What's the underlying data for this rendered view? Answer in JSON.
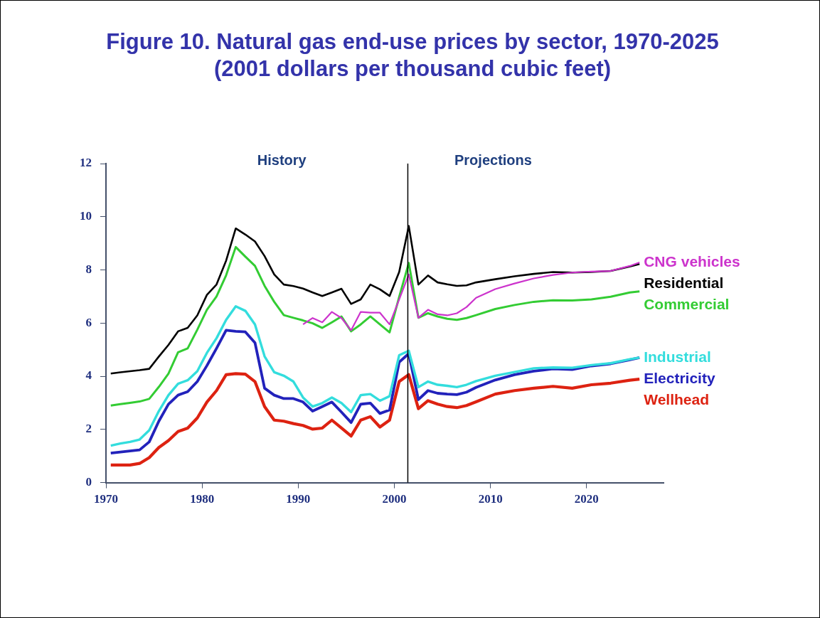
{
  "chart_data": {
    "type": "line",
    "title": "Figure 10. Natural gas end-use prices by sector, 1970-2025 (2001 dollars per thousand cubic feet)",
    "xlim": [
      1970,
      2028
    ],
    "xticks": [
      1970,
      1980,
      1990,
      2000,
      2010,
      2020
    ],
    "ylim": [
      0,
      12
    ],
    "yticks": [
      0,
      2,
      4,
      6,
      8,
      10,
      12
    ],
    "grid": false,
    "legend": false,
    "marker": "none",
    "line_style": "solid",
    "ref_lines": [
      {
        "axis": "x",
        "value": 2001.4,
        "color": "#000000"
      }
    ],
    "annotations": [
      "History",
      "Projections"
    ],
    "series": [
      {
        "name": "CNG vehicles",
        "color": "#cc33cc",
        "x": [
          1990.5,
          1991.5,
          1992.5,
          1993.5,
          1994.5,
          1995.5,
          1996.5,
          1997.5,
          1998.5,
          1999.5,
          2000.5,
          2001.5,
          2002.5,
          2003.5,
          2004.5,
          2005.5,
          2006.5,
          2007.5,
          2008.5,
          2010.5,
          2012.5,
          2014.5,
          2016.5,
          2018.5,
          2020.5,
          2022.5,
          2024.5,
          2025.5
        ],
        "values": [
          5.95,
          6.19,
          6.03,
          6.42,
          6.19,
          5.73,
          6.42,
          6.39,
          6.39,
          5.95,
          6.89,
          7.83,
          6.2,
          6.5,
          6.33,
          6.29,
          6.37,
          6.6,
          6.95,
          7.28,
          7.49,
          7.68,
          7.81,
          7.9,
          7.94,
          7.96,
          8.15,
          8.28
        ]
      },
      {
        "name": "Residential",
        "color": "#000000",
        "x": [
          1970.5,
          1971.5,
          1972.5,
          1973.5,
          1974.5,
          1975.5,
          1976.5,
          1977.5,
          1978.5,
          1979.5,
          1980.5,
          1981.5,
          1982.5,
          1983.5,
          1984.5,
          1985.5,
          1986.5,
          1987.5,
          1988.5,
          1989.5,
          1990.5,
          1991.5,
          1992.5,
          1993.5,
          1994.5,
          1995.5,
          1996.5,
          1997.5,
          1998.5,
          1999.5,
          2000.5,
          2001.5,
          2002.5,
          2003.5,
          2004.5,
          2005.5,
          2006.5,
          2007.5,
          2008.5,
          2010.5,
          2012.5,
          2014.5,
          2016.5,
          2018.5,
          2020.5,
          2022.5,
          2024.5,
          2025.5
        ],
        "values": [
          4.1,
          4.15,
          4.19,
          4.23,
          4.28,
          4.74,
          5.18,
          5.69,
          5.82,
          6.29,
          7.06,
          7.45,
          8.35,
          9.56,
          9.33,
          9.07,
          8.52,
          7.83,
          7.45,
          7.39,
          7.3,
          7.15,
          7.02,
          7.15,
          7.29,
          6.72,
          6.89,
          7.45,
          7.27,
          7.02,
          7.92,
          9.65,
          7.45,
          7.79,
          7.53,
          7.46,
          7.4,
          7.42,
          7.53,
          7.65,
          7.76,
          7.85,
          7.92,
          7.9,
          7.92,
          7.96,
          8.13,
          8.22
        ]
      },
      {
        "name": "Commercial",
        "color": "#33cc33",
        "x": [
          1970.5,
          1971.5,
          1972.5,
          1973.5,
          1974.5,
          1975.5,
          1976.5,
          1977.5,
          1978.5,
          1979.5,
          1980.5,
          1981.5,
          1982.5,
          1983.5,
          1984.5,
          1985.5,
          1986.5,
          1987.5,
          1988.5,
          1989.5,
          1990.5,
          1991.5,
          1992.5,
          1993.5,
          1994.5,
          1995.5,
          1996.5,
          1997.5,
          1998.5,
          1999.5,
          2000.5,
          2001.5,
          2002.5,
          2003.5,
          2004.5,
          2005.5,
          2006.5,
          2007.5,
          2008.5,
          2010.5,
          2012.5,
          2014.5,
          2016.5,
          2018.5,
          2020.5,
          2022.5,
          2024.5,
          2025.5
        ],
        "values": [
          2.9,
          2.95,
          3,
          3.05,
          3.15,
          3.6,
          4.1,
          4.9,
          5.05,
          5.75,
          6.5,
          7,
          7.8,
          8.86,
          8.5,
          8.15,
          7.4,
          6.8,
          6.3,
          6.2,
          6.1,
          5.99,
          5.82,
          6.03,
          6.25,
          5.69,
          5.95,
          6.25,
          5.95,
          5.65,
          6.98,
          8.26,
          6.2,
          6.37,
          6.25,
          6.16,
          6.12,
          6.19,
          6.3,
          6.53,
          6.68,
          6.8,
          6.86,
          6.85,
          6.89,
          6.99,
          7.15,
          7.19
        ]
      },
      {
        "name": "Industrial",
        "color": "#33dddd",
        "x": [
          1970.5,
          1971.5,
          1972.5,
          1973.5,
          1974.5,
          1975.5,
          1976.5,
          1977.5,
          1978.5,
          1979.5,
          1980.5,
          1981.5,
          1982.5,
          1983.5,
          1984.5,
          1985.5,
          1986.5,
          1987.5,
          1988.5,
          1989.5,
          1990.5,
          1991.5,
          1992.5,
          1993.5,
          1994.5,
          1995.5,
          1996.5,
          1997.5,
          1998.5,
          1999.5,
          2000.5,
          2001.5,
          2002.5,
          2003.5,
          2004.5,
          2005.5,
          2006.5,
          2007.5,
          2008.5,
          2010.5,
          2012.5,
          2014.5,
          2016.5,
          2018.5,
          2020.5,
          2022.5,
          2024.5,
          2025.5
        ],
        "values": [
          1.39,
          1.47,
          1.53,
          1.62,
          1.97,
          2.69,
          3.29,
          3.72,
          3.85,
          4.19,
          4.88,
          5.43,
          6.12,
          6.63,
          6.46,
          5.95,
          4.75,
          4.15,
          4.02,
          3.8,
          3.2,
          2.86,
          2.99,
          3.2,
          2.99,
          2.65,
          3.29,
          3.33,
          3.08,
          3.25,
          4.79,
          4.96,
          3.59,
          3.8,
          3.68,
          3.64,
          3.59,
          3.68,
          3.82,
          4.02,
          4.16,
          4.3,
          4.33,
          4.32,
          4.42,
          4.49,
          4.64,
          4.7
        ]
      },
      {
        "name": "Electricity",
        "color": "#2222bb",
        "x": [
          1970.5,
          1971.5,
          1972.5,
          1973.5,
          1974.5,
          1975.5,
          1976.5,
          1977.5,
          1978.5,
          1979.5,
          1980.5,
          1981.5,
          1982.5,
          1983.5,
          1984.5,
          1985.5,
          1986.5,
          1987.5,
          1988.5,
          1989.5,
          1990.5,
          1991.5,
          1992.5,
          1993.5,
          1994.5,
          1995.5,
          1996.5,
          1997.5,
          1998.5,
          1999.5,
          2000.5,
          2001.5,
          2002.5,
          2003.5,
          2004.5,
          2005.5,
          2006.5,
          2007.5,
          2008.5,
          2010.5,
          2012.5,
          2014.5,
          2016.5,
          2018.5,
          2020.5,
          2022.5,
          2024.5,
          2025.5
        ],
        "values": [
          1.11,
          1.15,
          1.19,
          1.23,
          1.53,
          2.31,
          2.95,
          3.29,
          3.42,
          3.8,
          4.4,
          5.05,
          5.73,
          5.69,
          5.67,
          5.26,
          3.55,
          3.29,
          3.16,
          3.16,
          3.03,
          2.69,
          2.86,
          3.03,
          2.65,
          2.26,
          2.95,
          2.99,
          2.6,
          2.73,
          4.53,
          4.85,
          3.12,
          3.46,
          3.36,
          3.33,
          3.31,
          3.4,
          3.58,
          3.86,
          4.06,
          4.19,
          4.28,
          4.25,
          4.39,
          4.47,
          4.62,
          4.7
        ]
      },
      {
        "name": "Wellhead",
        "color": "#dd2211",
        "x": [
          1970.5,
          1971.5,
          1972.5,
          1973.5,
          1974.5,
          1975.5,
          1976.5,
          1977.5,
          1978.5,
          1979.5,
          1980.5,
          1981.5,
          1982.5,
          1983.5,
          1984.5,
          1985.5,
          1986.5,
          1987.5,
          1988.5,
          1989.5,
          1990.5,
          1991.5,
          1992.5,
          1993.5,
          1994.5,
          1995.5,
          1996.5,
          1997.5,
          1998.5,
          1999.5,
          2000.5,
          2001.5,
          2002.5,
          2003.5,
          2004.5,
          2005.5,
          2006.5,
          2007.5,
          2008.5,
          2010.5,
          2012.5,
          2014.5,
          2016.5,
          2018.5,
          2020.5,
          2022.5,
          2024.5,
          2025.5
        ],
        "values": [
          0.66,
          0.66,
          0.66,
          0.72,
          0.94,
          1.32,
          1.58,
          1.92,
          2.05,
          2.43,
          3.03,
          3.46,
          4.06,
          4.1,
          4.08,
          3.8,
          2.86,
          2.35,
          2.31,
          2.22,
          2.15,
          2.01,
          2.05,
          2.35,
          2.05,
          1.75,
          2.35,
          2.48,
          2.09,
          2.35,
          3.8,
          4.06,
          2.78,
          3.08,
          2.95,
          2.86,
          2.82,
          2.9,
          3.04,
          3.33,
          3.46,
          3.55,
          3.62,
          3.55,
          3.68,
          3.74,
          3.85,
          3.89
        ]
      }
    ]
  }
}
